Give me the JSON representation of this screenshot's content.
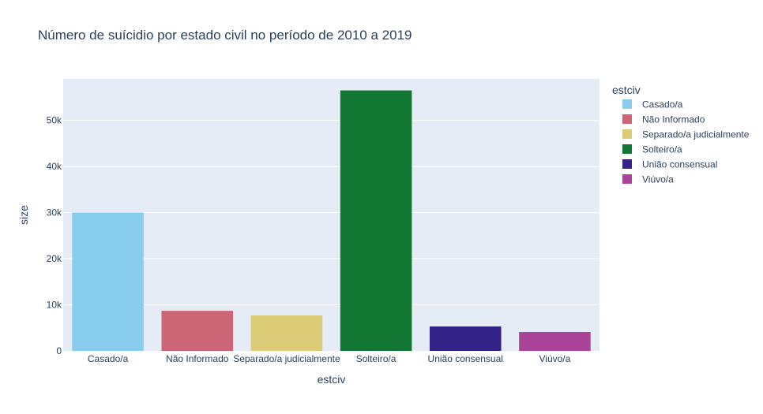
{
  "chart_data": {
    "type": "bar",
    "title": "Número de suícidio por estado civil no período de 2010 a 2019",
    "xlabel": "estciv",
    "ylabel": "size",
    "ylim": [
      0,
      59000
    ],
    "yticks": [
      0,
      10000,
      20000,
      30000,
      40000,
      50000
    ],
    "ytick_labels": [
      "0",
      "10k",
      "20k",
      "30k",
      "40k",
      "50k"
    ],
    "grid": true,
    "legend": {
      "title": "estciv",
      "placement": "right"
    },
    "categories": [
      "Casado/a",
      "Não Informado",
      "Separado/a judicialmente",
      "Solteiro/a",
      "União consensual",
      "Viúvo/a"
    ],
    "values": [
      30000,
      8700,
      7700,
      56500,
      5300,
      4100
    ],
    "colors": [
      "#88CCEE",
      "#CC6677",
      "#DDCC77",
      "#117733",
      "#332288",
      "#AA4499"
    ],
    "plot_bg": "#E5ECF6",
    "grid_color": "#FFFFFF",
    "text_color": "#2A3F5F"
  }
}
